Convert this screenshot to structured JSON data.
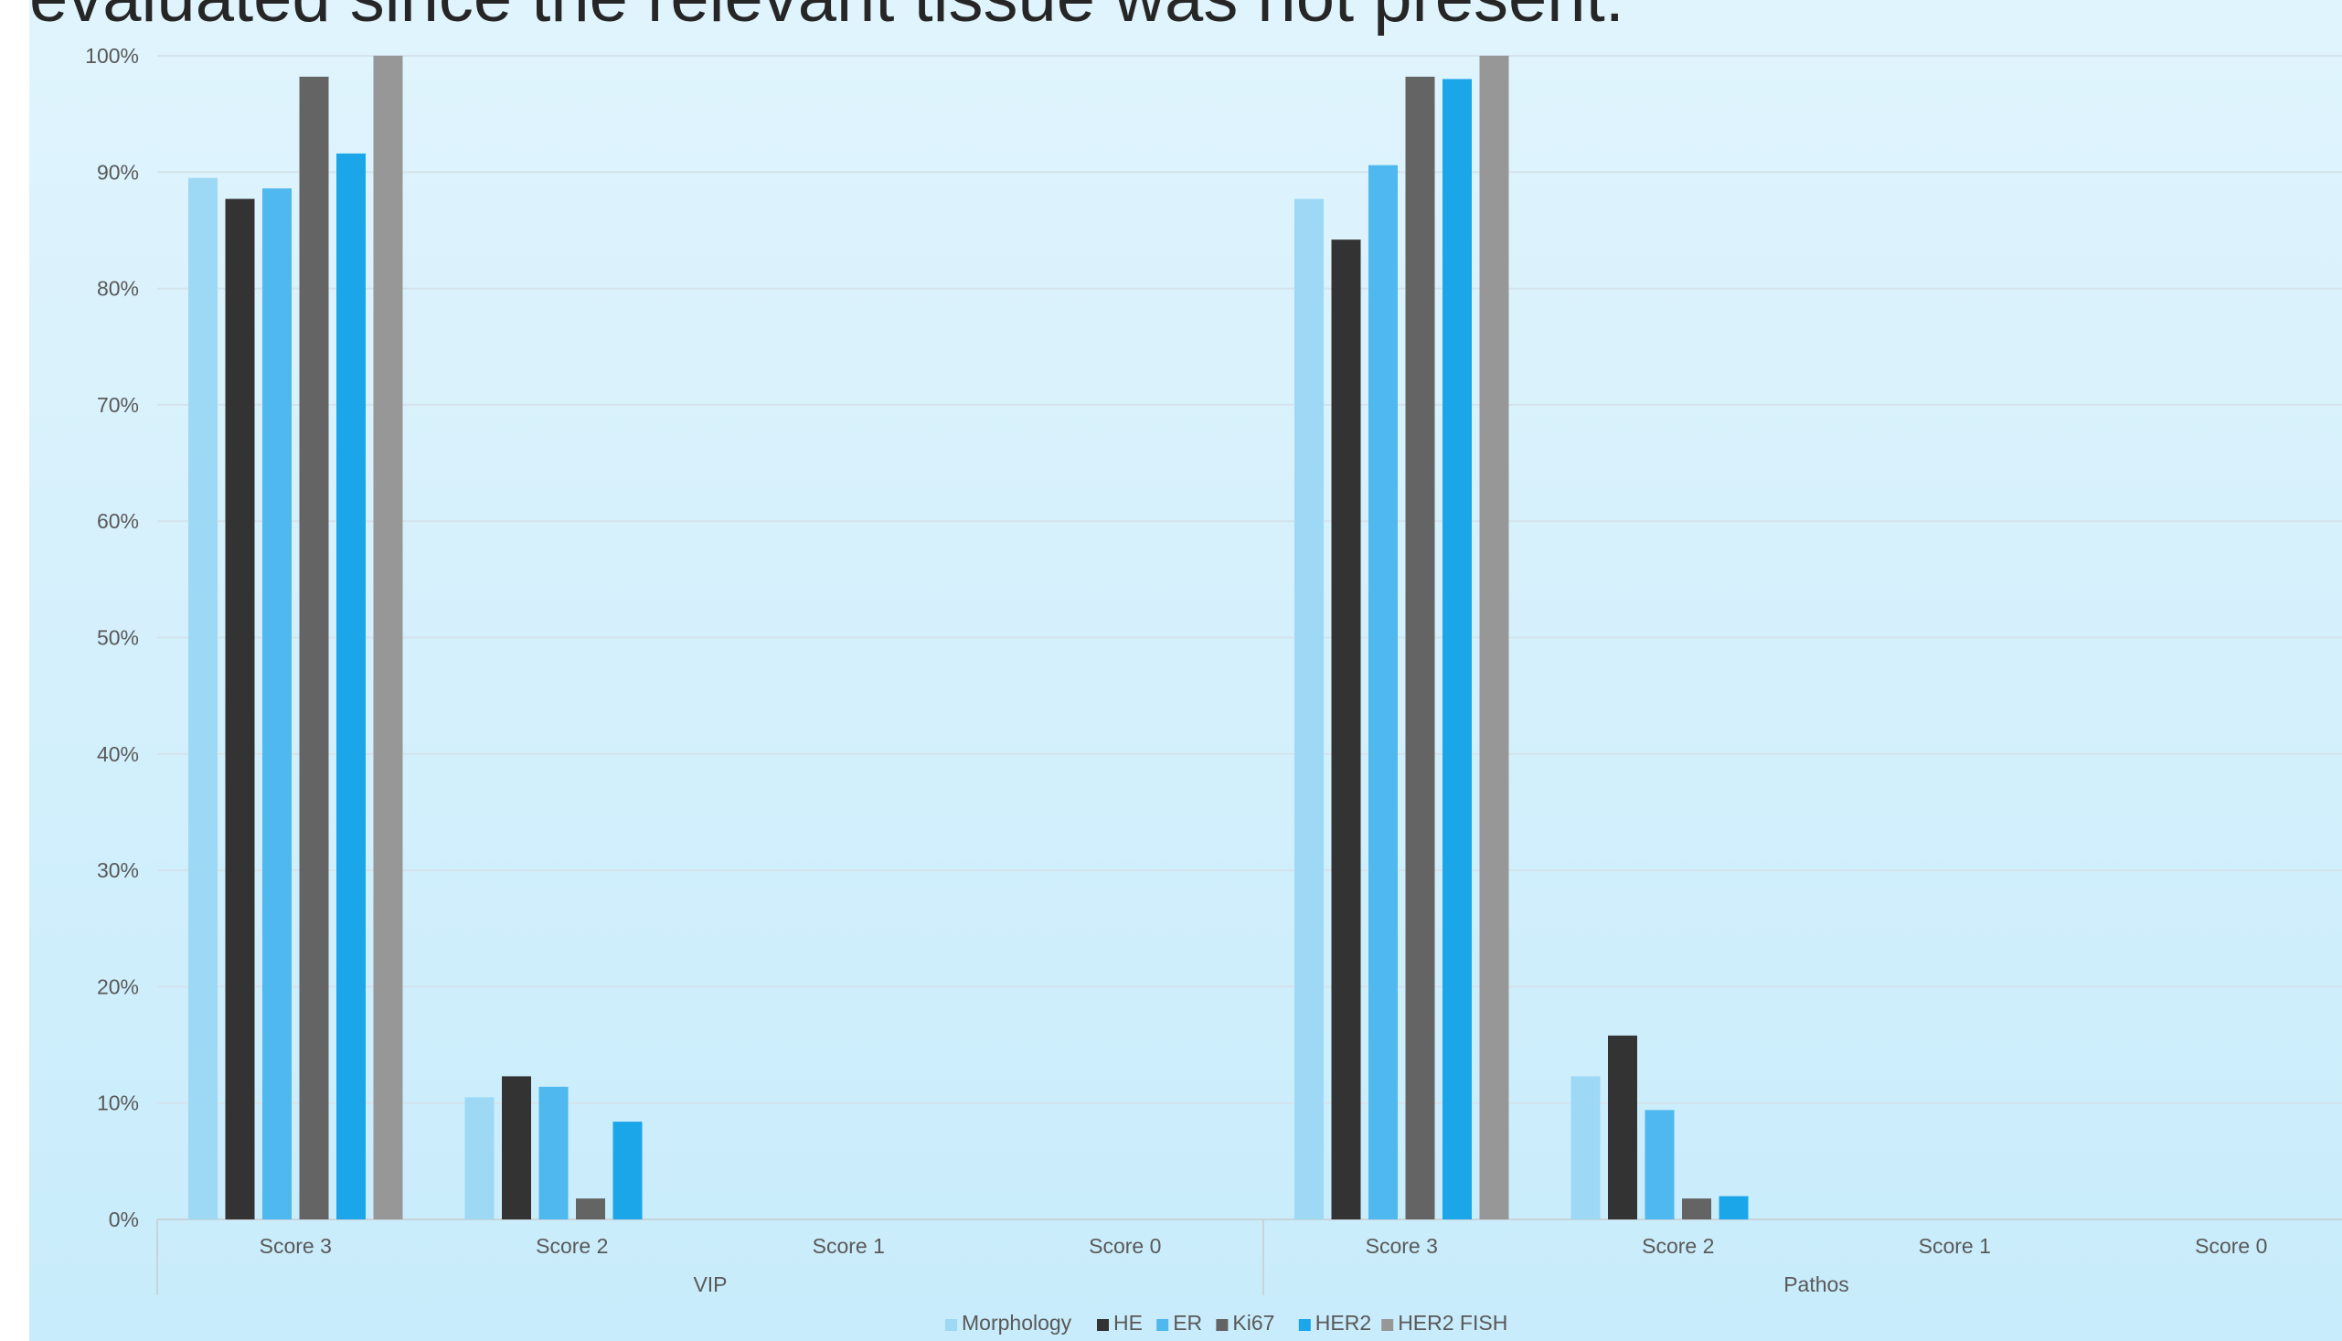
{
  "slide": {
    "title": "evaluated since the relevant tissue was not present."
  },
  "chart_data": {
    "type": "bar",
    "title": "",
    "xlabel": "",
    "ylabel": "",
    "ylim": [
      0,
      100
    ],
    "y_ticks": [
      "0%",
      "10%",
      "20%",
      "30%",
      "40%",
      "50%",
      "60%",
      "70%",
      "80%",
      "90%",
      "100%"
    ],
    "grid": true,
    "legend_position": "bottom",
    "groups": [
      {
        "name": "VIP",
        "categories": [
          "Score 3",
          "Score 2",
          "Score 1",
          "Score 0"
        ]
      },
      {
        "name": "Pathos",
        "categories": [
          "Score 3",
          "Score 2",
          "Score 1",
          "Score 0"
        ]
      }
    ],
    "series": [
      {
        "name": "Morphology",
        "color": "#9dd8f5",
        "values": [
          89.5,
          10.5,
          0,
          0,
          87.7,
          12.3,
          0,
          0
        ]
      },
      {
        "name": "HE",
        "color": "#333333",
        "values": [
          87.7,
          12.3,
          0,
          0,
          84.2,
          15.8,
          0,
          0
        ]
      },
      {
        "name": "ER",
        "color": "#4fb8ee",
        "values": [
          88.6,
          11.4,
          0,
          0,
          90.6,
          9.4,
          0,
          0
        ]
      },
      {
        "name": "Ki67",
        "color": "#646464",
        "values": [
          98.2,
          1.8,
          0,
          0,
          98.2,
          1.8,
          0,
          0
        ]
      },
      {
        "name": "HER2",
        "color": "#1ca6ea",
        "values": [
          91.6,
          8.4,
          0,
          0,
          98.0,
          2.0,
          0,
          0
        ]
      },
      {
        "name": "HER2 FISH",
        "color": "#979797",
        "values": [
          100,
          0,
          0,
          0,
          100,
          0,
          0,
          0
        ]
      }
    ]
  }
}
